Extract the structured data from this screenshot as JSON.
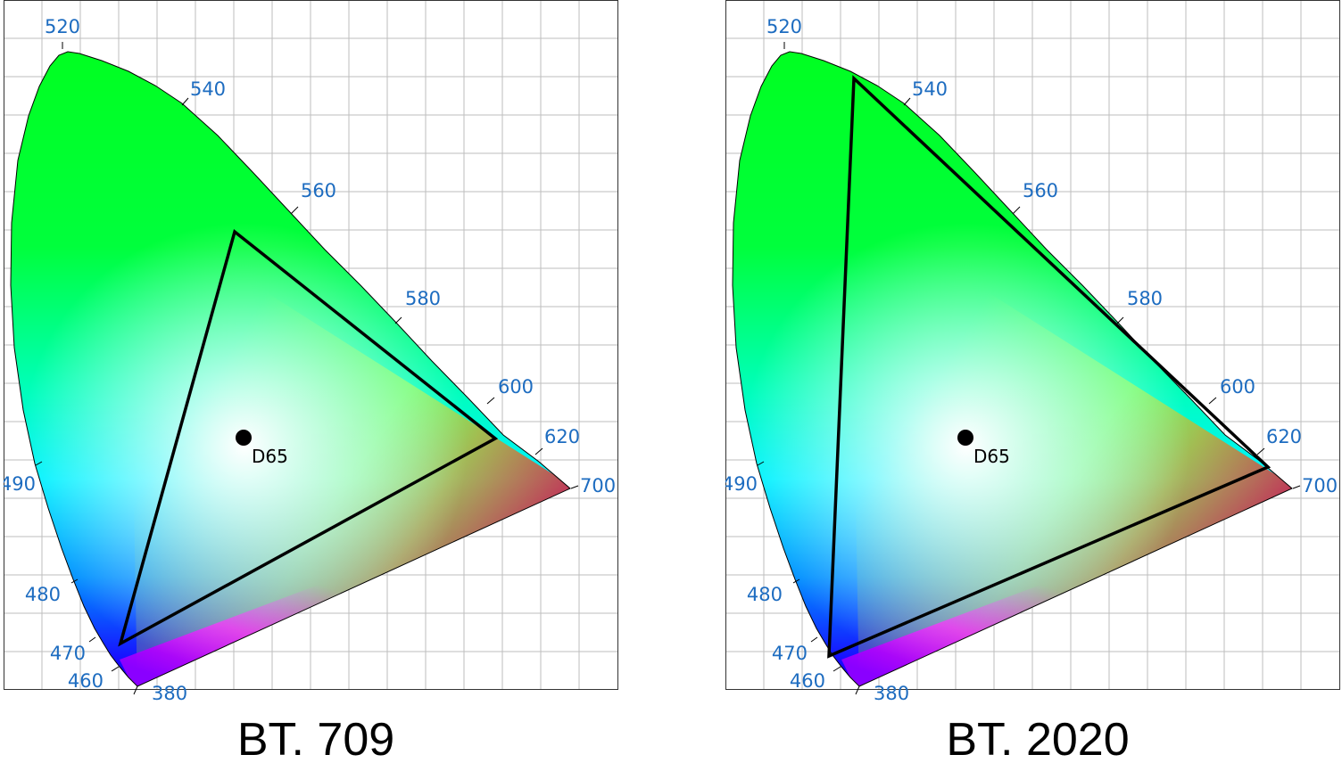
{
  "colors": {
    "wavelength_label": "#1d6cc0",
    "grid": "#bdbdbd",
    "frame": "#333333",
    "triangle": "#000000"
  },
  "white_point": {
    "label": "D65"
  },
  "wavelength_labels": [
    "520",
    "540",
    "560",
    "580",
    "600",
    "620",
    "700",
    "490",
    "480",
    "470",
    "460",
    "380"
  ],
  "panels": [
    {
      "id": "bt709",
      "title": "BT. 709"
    },
    {
      "id": "bt2020",
      "title": "BT. 2020"
    }
  ]
}
